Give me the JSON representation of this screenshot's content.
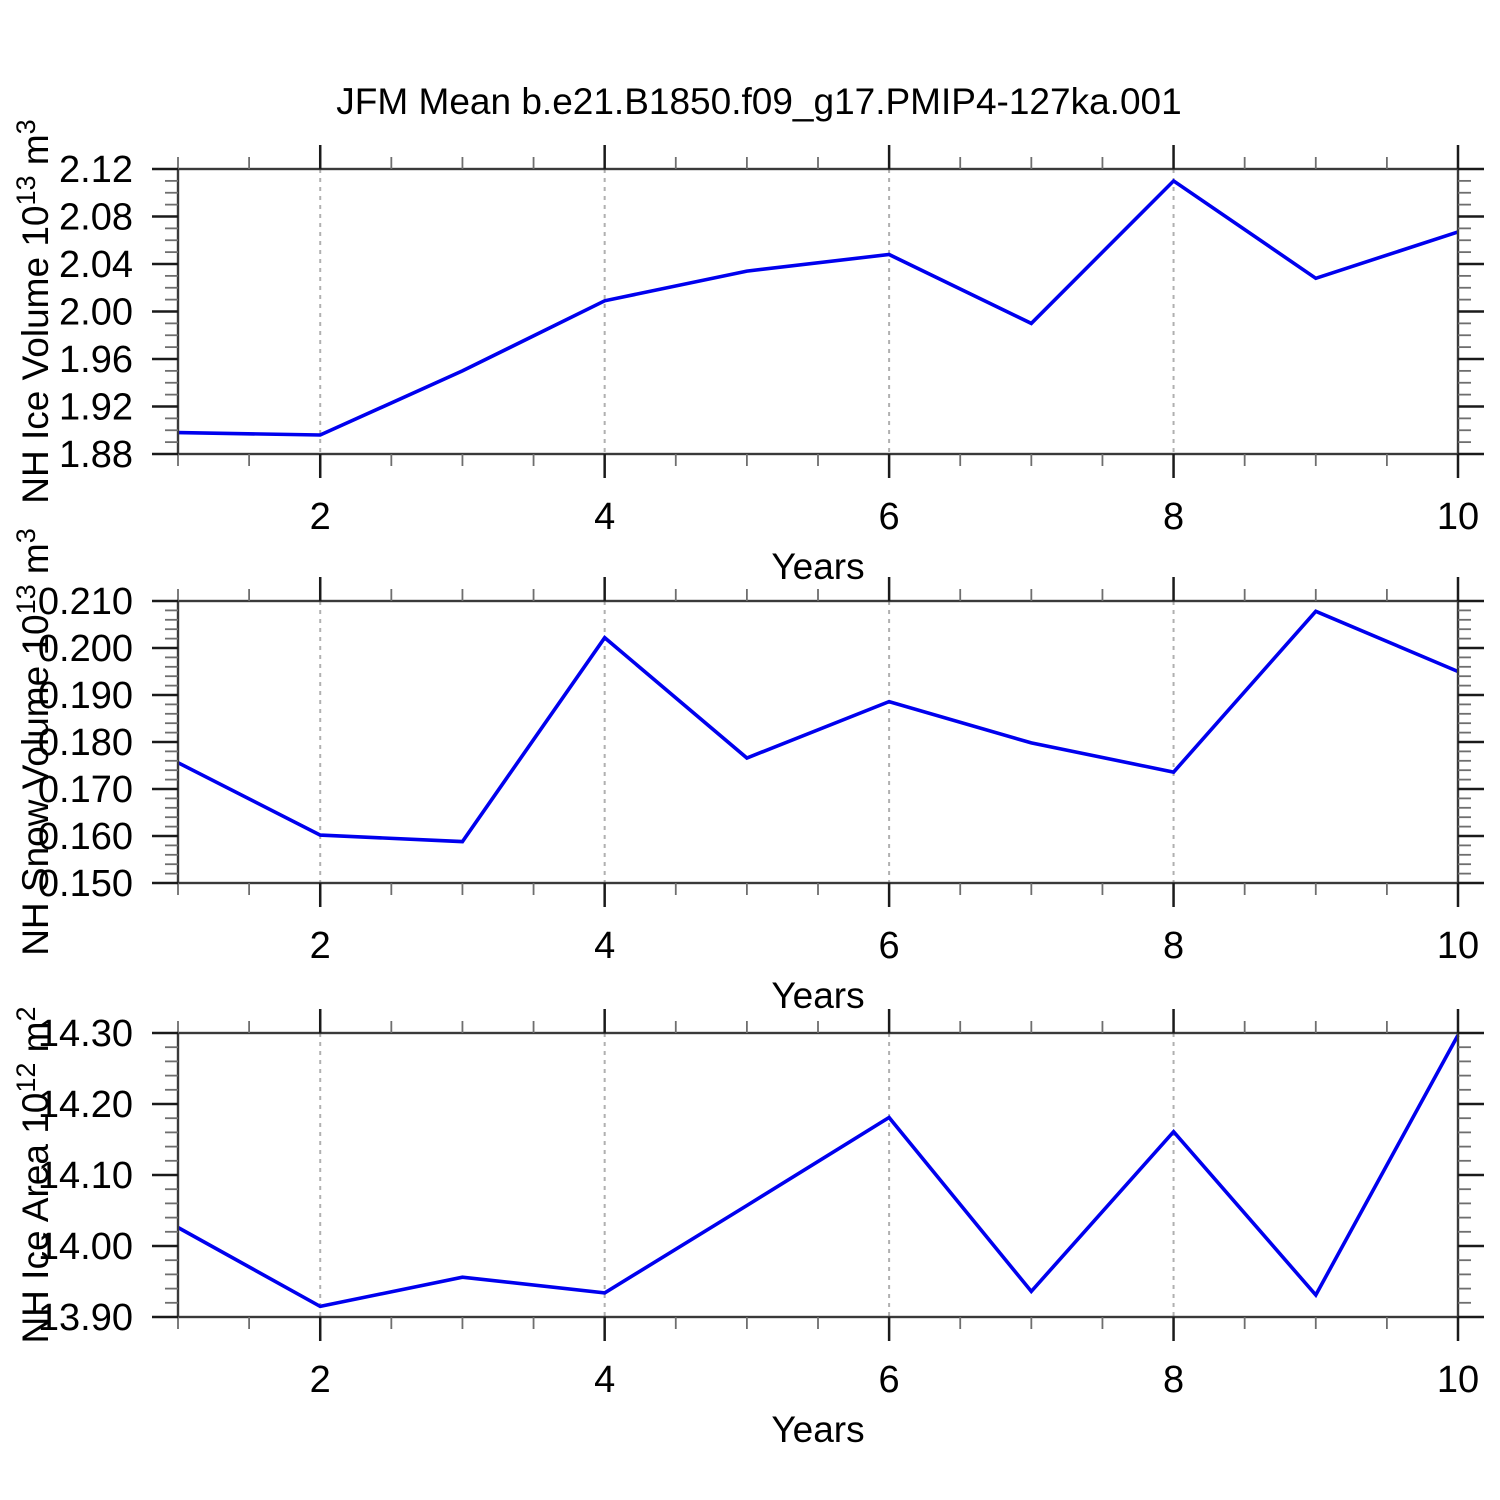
{
  "title": "JFM Mean b.e21.B1850.f09_g17.PMIP4-127ka.001",
  "colors": {
    "line": "#0000EE",
    "frame": "#3a3a3a",
    "major_tick": "#1a1a1a",
    "minor_tick": "#6e6e6e",
    "grid": "#b0b0b0",
    "text": "#000000",
    "background": "#ffffff"
  },
  "chart_data": [
    {
      "type": "line",
      "name": "NH Ice Volume",
      "title": "",
      "ylabel": "NH Ice Volume 10^13 m^3",
      "xlabel": "Years",
      "x": [
        1,
        2,
        3,
        4,
        5,
        6,
        7,
        8,
        9,
        10
      ],
      "values": [
        1.898,
        1.896,
        1.95,
        2.009,
        2.034,
        2.048,
        1.99,
        2.11,
        2.028,
        2.067
      ],
      "xlim": [
        1,
        10
      ],
      "ylim": [
        1.88,
        2.12
      ],
      "xtick_values": [
        2,
        4,
        6,
        8,
        10
      ],
      "xtick_labels": [
        "2",
        "4",
        "6",
        "8",
        "10"
      ],
      "xtick_minor_step": 0.5,
      "ytick_values": [
        1.88,
        1.92,
        1.96,
        2.0,
        2.04,
        2.08,
        2.12
      ],
      "ytick_labels": [
        "1.88",
        "1.92",
        "1.96",
        "2.00",
        "2.04",
        "2.08",
        "2.12"
      ],
      "ytick_minor_step": 0.01,
      "grid_x": [
        2,
        4,
        6,
        8
      ],
      "grid_style": "dashed-vertical",
      "legend": "none"
    },
    {
      "type": "line",
      "name": "NH Snow Volume",
      "title": "",
      "ylabel": "NH Snow Volume 10^13 m^3",
      "xlabel": "Years",
      "x": [
        1,
        2,
        3,
        4,
        5,
        6,
        7,
        8,
        9,
        10
      ],
      "values": [
        0.1756,
        0.1602,
        0.1588,
        0.2022,
        0.1766,
        0.1886,
        0.1798,
        0.1736,
        0.2078,
        0.195
      ],
      "xlim": [
        1,
        10
      ],
      "ylim": [
        0.15,
        0.21
      ],
      "xtick_values": [
        2,
        4,
        6,
        8,
        10
      ],
      "xtick_labels": [
        "2",
        "4",
        "6",
        "8",
        "10"
      ],
      "xtick_minor_step": 0.5,
      "ytick_values": [
        0.15,
        0.16,
        0.17,
        0.18,
        0.19,
        0.2,
        0.21
      ],
      "ytick_labels": [
        "0.150",
        "0.160",
        "0.170",
        "0.180",
        "0.190",
        "0.200",
        "0.210"
      ],
      "ytick_minor_step": 0.002,
      "grid_x": [
        2,
        4,
        6,
        8
      ],
      "grid_style": "dashed-vertical",
      "legend": "none"
    },
    {
      "type": "line",
      "name": "NH Ice Area",
      "title": "",
      "ylabel": "NH Ice Area 10^12 m^2",
      "xlabel": "Years",
      "x": [
        1,
        2,
        3,
        4,
        5,
        6,
        7,
        8,
        9,
        10
      ],
      "values": [
        14.026,
        13.915,
        13.956,
        13.934,
        14.057,
        14.181,
        13.936,
        14.161,
        13.931,
        14.297
      ],
      "xlim": [
        1,
        10
      ],
      "ylim": [
        13.9,
        14.3
      ],
      "xtick_values": [
        2,
        4,
        6,
        8,
        10
      ],
      "xtick_labels": [
        "2",
        "4",
        "6",
        "8",
        "10"
      ],
      "xtick_minor_step": 0.5,
      "ytick_values": [
        13.9,
        14.0,
        14.1,
        14.2,
        14.3
      ],
      "ytick_labels": [
        "13.90",
        "14.00",
        "14.10",
        "14.20",
        "14.30"
      ],
      "ytick_minor_step": 0.02,
      "grid_x": [
        2,
        4,
        6,
        8
      ],
      "grid_style": "dashed-vertical",
      "legend": "none"
    }
  ]
}
